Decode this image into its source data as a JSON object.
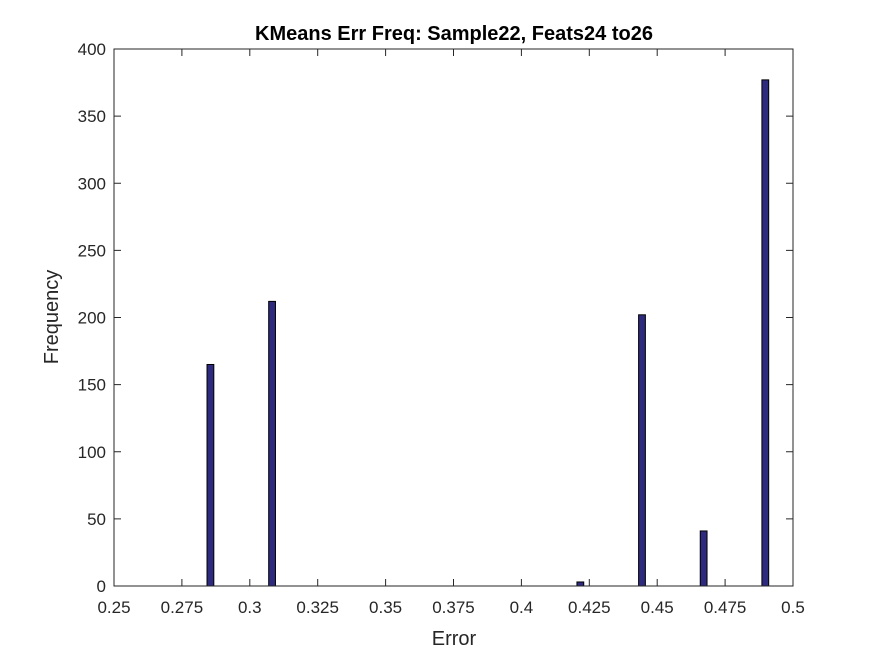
{
  "chart_data": {
    "type": "bar",
    "title": "KMeans Err Freq: Sample22, Feats24 to26",
    "xlabel": "Error",
    "ylabel": "Frequency",
    "xlim": [
      0.25,
      0.5
    ],
    "ylim": [
      0,
      400
    ],
    "xticks": [
      "0.25",
      "0.275",
      "0.3",
      "0.325",
      "0.35",
      "0.375",
      "0.4",
      "0.425",
      "0.45",
      "0.475",
      "0.5"
    ],
    "yticks": [
      "0",
      "50",
      "100",
      "150",
      "200",
      "250",
      "300",
      "350",
      "400"
    ],
    "x": [
      0.2855,
      0.3082,
      0.4217,
      0.4444,
      0.4671,
      0.4898
    ],
    "values": [
      165,
      212,
      3,
      202,
      41,
      377
    ],
    "bar_width": 0.0025,
    "grid": false,
    "colors": {
      "bar_fill": "#2e2a7e",
      "bar_edge": "#000000",
      "axis": "#262626"
    }
  }
}
